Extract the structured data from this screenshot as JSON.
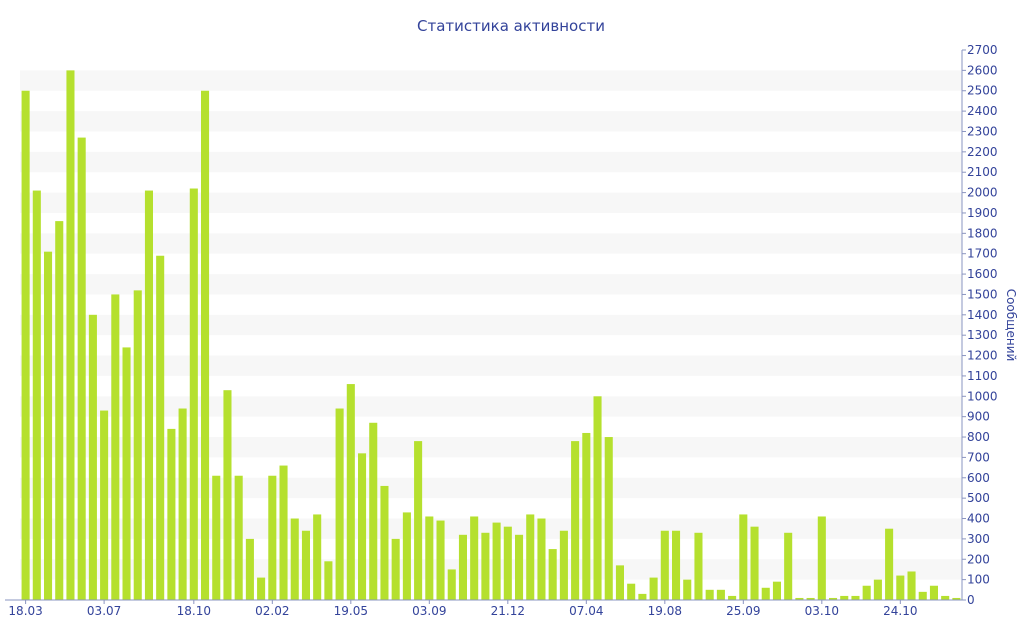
{
  "chart_data": {
    "type": "bar",
    "title": "Статистика активности",
    "ylabel": "Сообщений",
    "xlabel": "",
    "ylim": [
      0,
      2700
    ],
    "y_tick_step": 100,
    "grid": "alternating horizontal bands",
    "legend": "none",
    "bar_color": "#b5e02e",
    "text_color": "#33439a",
    "x_tick_labels": [
      {
        "index": 0,
        "label": "18.03"
      },
      {
        "index": 7,
        "label": "03.07"
      },
      {
        "index": 15,
        "label": "18.10"
      },
      {
        "index": 22,
        "label": "02.02"
      },
      {
        "index": 29,
        "label": "19.05"
      },
      {
        "index": 36,
        "label": "03.09"
      },
      {
        "index": 43,
        "label": "21.12"
      },
      {
        "index": 50,
        "label": "07.04"
      },
      {
        "index": 57,
        "label": "19.08"
      },
      {
        "index": 64,
        "label": "25.09"
      },
      {
        "index": 71,
        "label": "03.10"
      },
      {
        "index": 78,
        "label": "24.10"
      }
    ],
    "values": [
      2500,
      2010,
      1710,
      1860,
      2600,
      2270,
      1400,
      930,
      1500,
      1240,
      1520,
      2010,
      1690,
      840,
      940,
      2020,
      2500,
      610,
      1030,
      610,
      300,
      110,
      610,
      660,
      400,
      340,
      420,
      190,
      940,
      1060,
      720,
      870,
      560,
      300,
      430,
      780,
      410,
      390,
      150,
      320,
      410,
      330,
      380,
      360,
      320,
      420,
      400,
      250,
      340,
      780,
      820,
      1000,
      800,
      170,
      80,
      30,
      110,
      340,
      340,
      100,
      330,
      50,
      50,
      20,
      420,
      360,
      60,
      90,
      330,
      10,
      10,
      410,
      10,
      20,
      20,
      70,
      100,
      350,
      120,
      140,
      40,
      70,
      20,
      10
    ]
  }
}
